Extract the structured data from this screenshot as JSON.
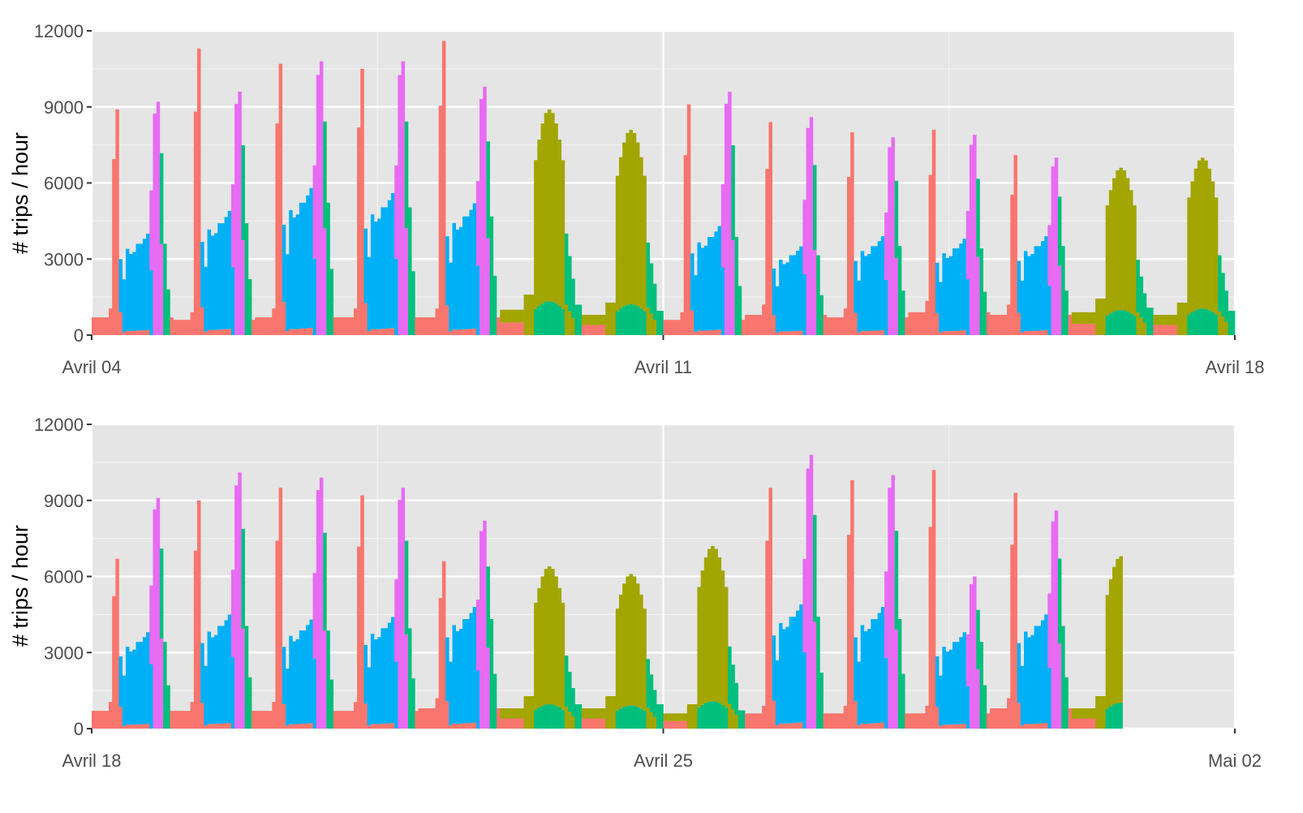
{
  "palette": {
    "panel_bg": "#e5e5e5",
    "grid_major": "#ffffff",
    "grid_minor": "#f2f2f2",
    "tick": "#333333",
    "colors": [
      "#f8766d",
      "#00b0f6",
      "#e76bf3",
      "#00bf7d",
      "#a3a500"
    ]
  },
  "chart_data": [
    {
      "type": "bar",
      "stacked": true,
      "ylabel": "# trips / hour",
      "ylim": [
        0,
        12000
      ],
      "yticks": [
        0,
        3000,
        6000,
        9000,
        12000
      ],
      "ytick_labels": [
        "0",
        "3000",
        "6000",
        "9000",
        "12000"
      ],
      "xlim": [
        "Avril 04",
        "Avril 18"
      ],
      "xticks": [
        "Avril 04",
        "Avril 11",
        "Avril 18"
      ],
      "x_units": "days",
      "bar_hours": 1,
      "grid": true,
      "legend": "none",
      "days": [
        {
          "type": "weekday",
          "night": 700,
          "am_peak": 8900,
          "mid": 4000,
          "pm_peak": 9200
        },
        {
          "type": "weekday",
          "night": 600,
          "am_peak": 11300,
          "mid": 4900,
          "pm_peak": 9600
        },
        {
          "type": "weekday",
          "night": 700,
          "am_peak": 10700,
          "mid": 5800,
          "pm_peak": 10800
        },
        {
          "type": "weekday",
          "night": 700,
          "am_peak": 10500,
          "mid": 5600,
          "pm_peak": 10800
        },
        {
          "type": "weekday",
          "night": 700,
          "am_peak": 11600,
          "mid": 5200,
          "pm_peak": 9800
        },
        {
          "type": "weekend",
          "night": 1000,
          "peak": 8900
        },
        {
          "type": "weekend",
          "night": 800,
          "peak": 8100
        },
        {
          "type": "weekday",
          "night": 600,
          "am_peak": 9100,
          "mid": 4300,
          "pm_peak": 9600
        },
        {
          "type": "weekday",
          "night": 800,
          "am_peak": 8400,
          "mid": 3500,
          "pm_peak": 8600
        },
        {
          "type": "weekday",
          "night": 700,
          "am_peak": 8000,
          "mid": 3900,
          "pm_peak": 7800
        },
        {
          "type": "weekday",
          "night": 900,
          "am_peak": 8100,
          "mid": 3800,
          "pm_peak": 7900
        },
        {
          "type": "weekday",
          "night": 800,
          "am_peak": 7100,
          "mid": 3900,
          "pm_peak": 7000
        },
        {
          "type": "weekend",
          "night": 900,
          "peak": 6600
        },
        {
          "type": "weekend",
          "night": 800,
          "peak": 7000
        }
      ]
    },
    {
      "type": "bar",
      "stacked": true,
      "ylabel": "# trips / hour",
      "ylim": [
        0,
        12000
      ],
      "yticks": [
        0,
        3000,
        6000,
        9000,
        12000
      ],
      "ytick_labels": [
        "0",
        "3000",
        "6000",
        "9000",
        "12000"
      ],
      "xlim": [
        "Avril 18",
        "Mai 02"
      ],
      "xticks": [
        "Avril 18",
        "Avril 25",
        "Mai 02"
      ],
      "x_units": "days",
      "bar_hours": 1,
      "grid": true,
      "legend": "none",
      "days": [
        {
          "type": "weekday",
          "night": 700,
          "am_peak": 6700,
          "mid": 3800,
          "pm_peak": 9100
        },
        {
          "type": "weekday",
          "night": 700,
          "am_peak": 9000,
          "mid": 4500,
          "pm_peak": 10100
        },
        {
          "type": "weekday",
          "night": 700,
          "am_peak": 9500,
          "mid": 4300,
          "pm_peak": 9900
        },
        {
          "type": "weekday",
          "night": 700,
          "am_peak": 9200,
          "mid": 4400,
          "pm_peak": 9500
        },
        {
          "type": "weekday",
          "night": 800,
          "am_peak": 6600,
          "mid": 4800,
          "pm_peak": 8200
        },
        {
          "type": "weekend",
          "night": 800,
          "peak": 6400
        },
        {
          "type": "weekend",
          "night": 800,
          "peak": 6100
        },
        {
          "type": "weekend",
          "night": 600,
          "peak": 7200
        },
        {
          "type": "weekday",
          "night": 600,
          "am_peak": 9500,
          "mid": 4900,
          "pm_peak": 10800
        },
        {
          "type": "weekday",
          "night": 600,
          "am_peak": 9800,
          "mid": 4800,
          "pm_peak": 10000
        },
        {
          "type": "weekday",
          "night": 600,
          "am_peak": 10200,
          "mid": 3800,
          "pm_peak": 6000
        },
        {
          "type": "weekday",
          "night": 800,
          "am_peak": 9300,
          "mid": 4500,
          "pm_peak": 8600
        },
        {
          "type": "weekend",
          "night": 800,
          "peak": 6800,
          "partial_hours": 15
        }
      ]
    }
  ]
}
